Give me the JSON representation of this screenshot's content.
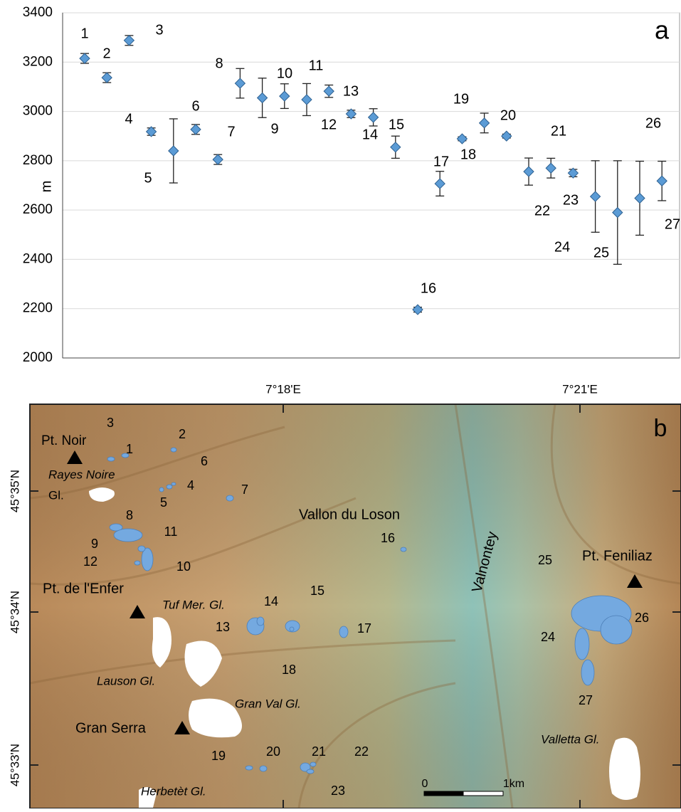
{
  "chart_data": {
    "type": "scatter",
    "panel_label": "a",
    "ylabel": "m",
    "categories": [
      "1",
      "2",
      "3",
      "4",
      "5",
      "6",
      "7",
      "8",
      "9",
      "10",
      "11",
      "12",
      "13",
      "14",
      "15",
      "16",
      "17",
      "18",
      "19",
      "20",
      "21",
      "22",
      "23",
      "24",
      "25",
      "26",
      "27"
    ],
    "series": [
      {
        "color": "#5b9bd5",
        "values": [
          3215,
          3137,
          3288,
          2918,
          2840,
          2927,
          2805,
          3114,
          3055,
          3062,
          3048,
          3082,
          2990,
          2976,
          2855,
          2196,
          2707,
          2889,
          2953,
          2900,
          2756,
          2770,
          2750,
          2655,
          2590,
          2648,
          2718
        ],
        "errors": [
          20,
          20,
          20,
          15,
          130,
          20,
          20,
          60,
          80,
          50,
          65,
          25,
          15,
          35,
          45,
          10,
          50,
          8,
          40,
          8,
          55,
          40,
          15,
          145,
          210,
          150,
          80
        ]
      }
    ],
    "ylim": [
      2000,
      3400
    ],
    "yticks": [
      2000,
      2200,
      2400,
      2600,
      2800,
      3000,
      3200,
      3400
    ],
    "grid": true
  },
  "map": {
    "panel_label": "b",
    "lon_labels": [
      "7°18'E",
      "7°21'E"
    ],
    "lat_labels": [
      "45°35'N",
      "45°34'N",
      "45°33'N"
    ],
    "places": [
      "Pt. Noir",
      "Rayes Noire",
      "Gl.",
      "Vallon du Loson",
      "Valnontey",
      "Pt. Feniliaz",
      "Pt. de l'Enfer",
      "Tuf Mer. Gl.",
      "Lauson Gl.",
      "Gran Val Gl.",
      "Gran Serra",
      "Valletta Gl.",
      "Herbetèt Gl."
    ],
    "scale_labels": [
      "0",
      "1km"
    ]
  }
}
